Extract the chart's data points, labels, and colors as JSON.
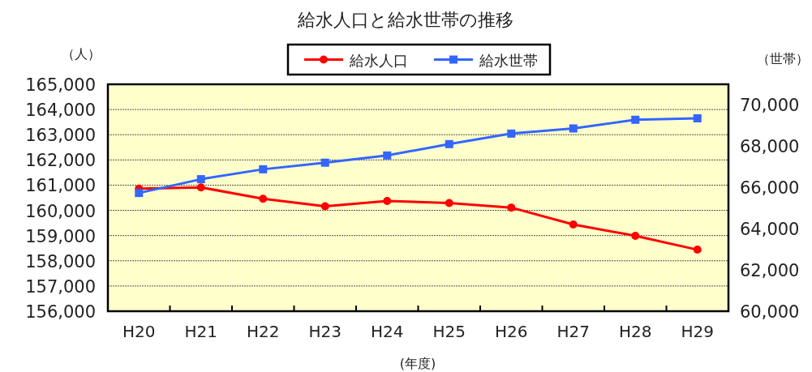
{
  "chart_data": {
    "type": "line",
    "title": "給水人口と給水世帯の推移",
    "ylabel": "（人）",
    "y2label": "（世帯）",
    "xlabel": "(年度)",
    "categories": [
      "H20",
      "H21",
      "H22",
      "H23",
      "H24",
      "H25",
      "H26",
      "H27",
      "H28",
      "H29"
    ],
    "series": [
      {
        "name": "給水人口",
        "color": "#ff0000",
        "marker": "circle",
        "values": [
          160860,
          160910,
          160460,
          160160,
          160370,
          160290,
          160110,
          159440,
          158990,
          158440
        ]
      },
      {
        "name": "給水世帯",
        "color": "#3366ff",
        "marker": "square",
        "axis": "y2",
        "values": [
          65730,
          66400,
          66880,
          67200,
          67550,
          68100,
          68610,
          68860,
          69280,
          69350
        ]
      }
    ],
    "ylim": [
      156000,
      165000
    ],
    "yticks": [
      {
        "value": 156000,
        "label": "156,000"
      },
      {
        "value": 157000,
        "label": "157,000"
      },
      {
        "value": 158000,
        "label": "158,000"
      },
      {
        "value": 159000,
        "label": "159,000"
      },
      {
        "value": 160000,
        "label": "160,000"
      },
      {
        "value": 161000,
        "label": "161,000"
      },
      {
        "value": 162000,
        "label": "162,000"
      },
      {
        "value": 163000,
        "label": "163,000"
      },
      {
        "value": 164000,
        "label": "164,000"
      },
      {
        "value": 165000,
        "label": "165,000"
      }
    ],
    "y2lim": [
      60000,
      71000
    ],
    "y2ticks": [
      {
        "value": 60000,
        "label": "60,000"
      },
      {
        "value": 62000,
        "label": "62,000"
      },
      {
        "value": 64000,
        "label": "64,000"
      },
      {
        "value": 66000,
        "label": "66,000"
      },
      {
        "value": 68000,
        "label": "68,000"
      },
      {
        "value": 70000,
        "label": "70,000"
      }
    ],
    "grid": "y",
    "legend": "top",
    "line_style": "solid"
  }
}
